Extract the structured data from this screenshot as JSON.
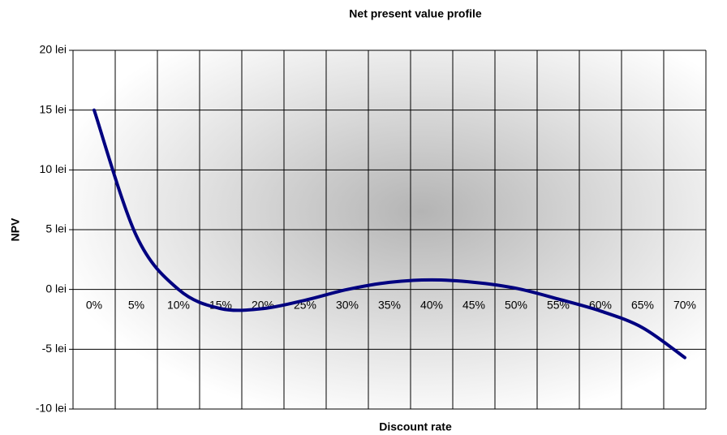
{
  "chart_data": {
    "type": "line",
    "title": "Net present value profile",
    "x_label": "Discount rate",
    "y_label": "NPV",
    "categories": [
      "0%",
      "5%",
      "10%",
      "15%",
      "20%",
      "25%",
      "30%",
      "35%",
      "40%",
      "45%",
      "50%",
      "55%",
      "60%",
      "65%",
      "70%"
    ],
    "series": [
      {
        "name": "NPV",
        "color": "#000080",
        "values": [
          15,
          4.5,
          0,
          -1.6,
          -1.6,
          -0.9,
          0,
          0.6,
          0.8,
          0.6,
          0.1,
          -0.8,
          -1.8,
          -3.2,
          -5.7
        ]
      }
    ],
    "ylim": [
      -10,
      20
    ],
    "yticks": [
      {
        "value": -10,
        "label": "-10 lei"
      },
      {
        "value": -5,
        "label": "-5 lei"
      },
      {
        "value": 0,
        "label": "0 lei"
      },
      {
        "value": 5,
        "label": "5 lei"
      },
      {
        "value": 10,
        "label": "10 lei"
      },
      {
        "value": 15,
        "label": "15 lei"
      },
      {
        "value": 20,
        "label": "20 lei"
      }
    ],
    "grid": true
  }
}
